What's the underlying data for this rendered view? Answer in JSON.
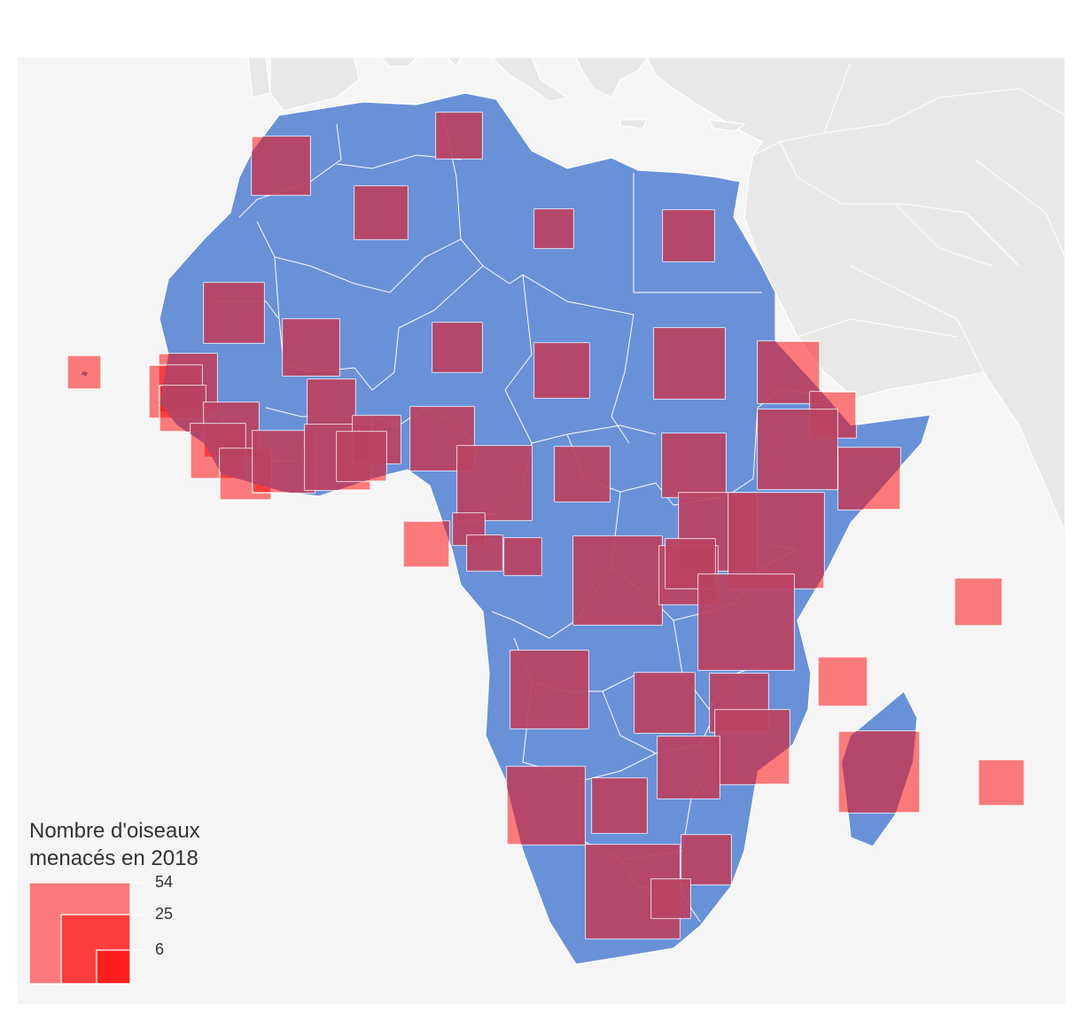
{
  "legend": {
    "title_line1": "Nombre d'oiseaux",
    "title_line2": "menacés en 2018",
    "values": [
      "54",
      "25",
      "6"
    ]
  },
  "colors": {
    "panel_background": "#f5f5f5",
    "neighbor_land": "#e8e8e8",
    "africa_fill": "#6991d8",
    "borders": "#ffffff",
    "square_fill": "#ff0000",
    "square_on_land": "#b4486a"
  },
  "map_meta": {
    "region": "Africa",
    "symbol": "proportional squares, side proportional to value"
  }
}
